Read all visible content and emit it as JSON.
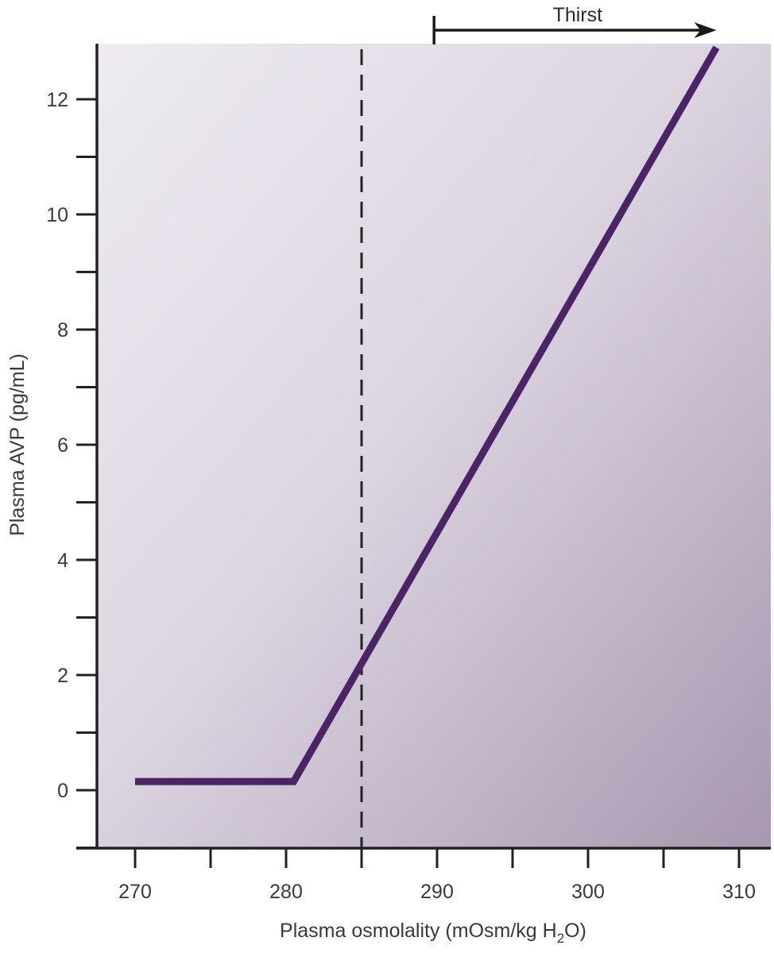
{
  "chart_data": {
    "type": "line",
    "title": "",
    "xlabel": "Plasma osmolality (mOsm/kg H2O)",
    "xlabel_parts": {
      "main": "Plasma osmolality (mOsm/kg H",
      "subscript": "2",
      "tail": "O)"
    },
    "ylabel": "Plasma AVP (pg/mL)",
    "xlim": [
      267.5,
      312
    ],
    "ylim": [
      -1,
      13
    ],
    "x_ticks": [
      270,
      280,
      290,
      300,
      310
    ],
    "x_tick_labels": [
      "270",
      "280",
      "290",
      "300",
      "310"
    ],
    "x_minor_ticks": [
      275,
      285,
      295,
      305
    ],
    "y_ticks": [
      0,
      2,
      4,
      6,
      8,
      10,
      12
    ],
    "y_tick_labels": [
      "0",
      "2",
      "4",
      "6",
      "8",
      "10",
      "12"
    ],
    "y_minor_ticks": [
      -1,
      1,
      3,
      5,
      7,
      9,
      11
    ],
    "grid": false,
    "legend": null,
    "series": [
      {
        "name": "Plasma AVP",
        "color": "#4b2466",
        "x": [
          270,
          280.5,
          308.5
        ],
        "y": [
          0.15,
          0.15,
          12.9
        ]
      }
    ],
    "reference_lines": [
      {
        "type": "vertical",
        "x": 285,
        "style": "dashed",
        "color": "#222222"
      }
    ],
    "annotations": [
      {
        "type": "range-arrow",
        "label": "Thirst",
        "x_start": 289.8,
        "x_end": 308.5,
        "position": "above plot"
      }
    ],
    "background_gradient": {
      "from": "#edeaf0",
      "to": "#a898b0"
    }
  }
}
